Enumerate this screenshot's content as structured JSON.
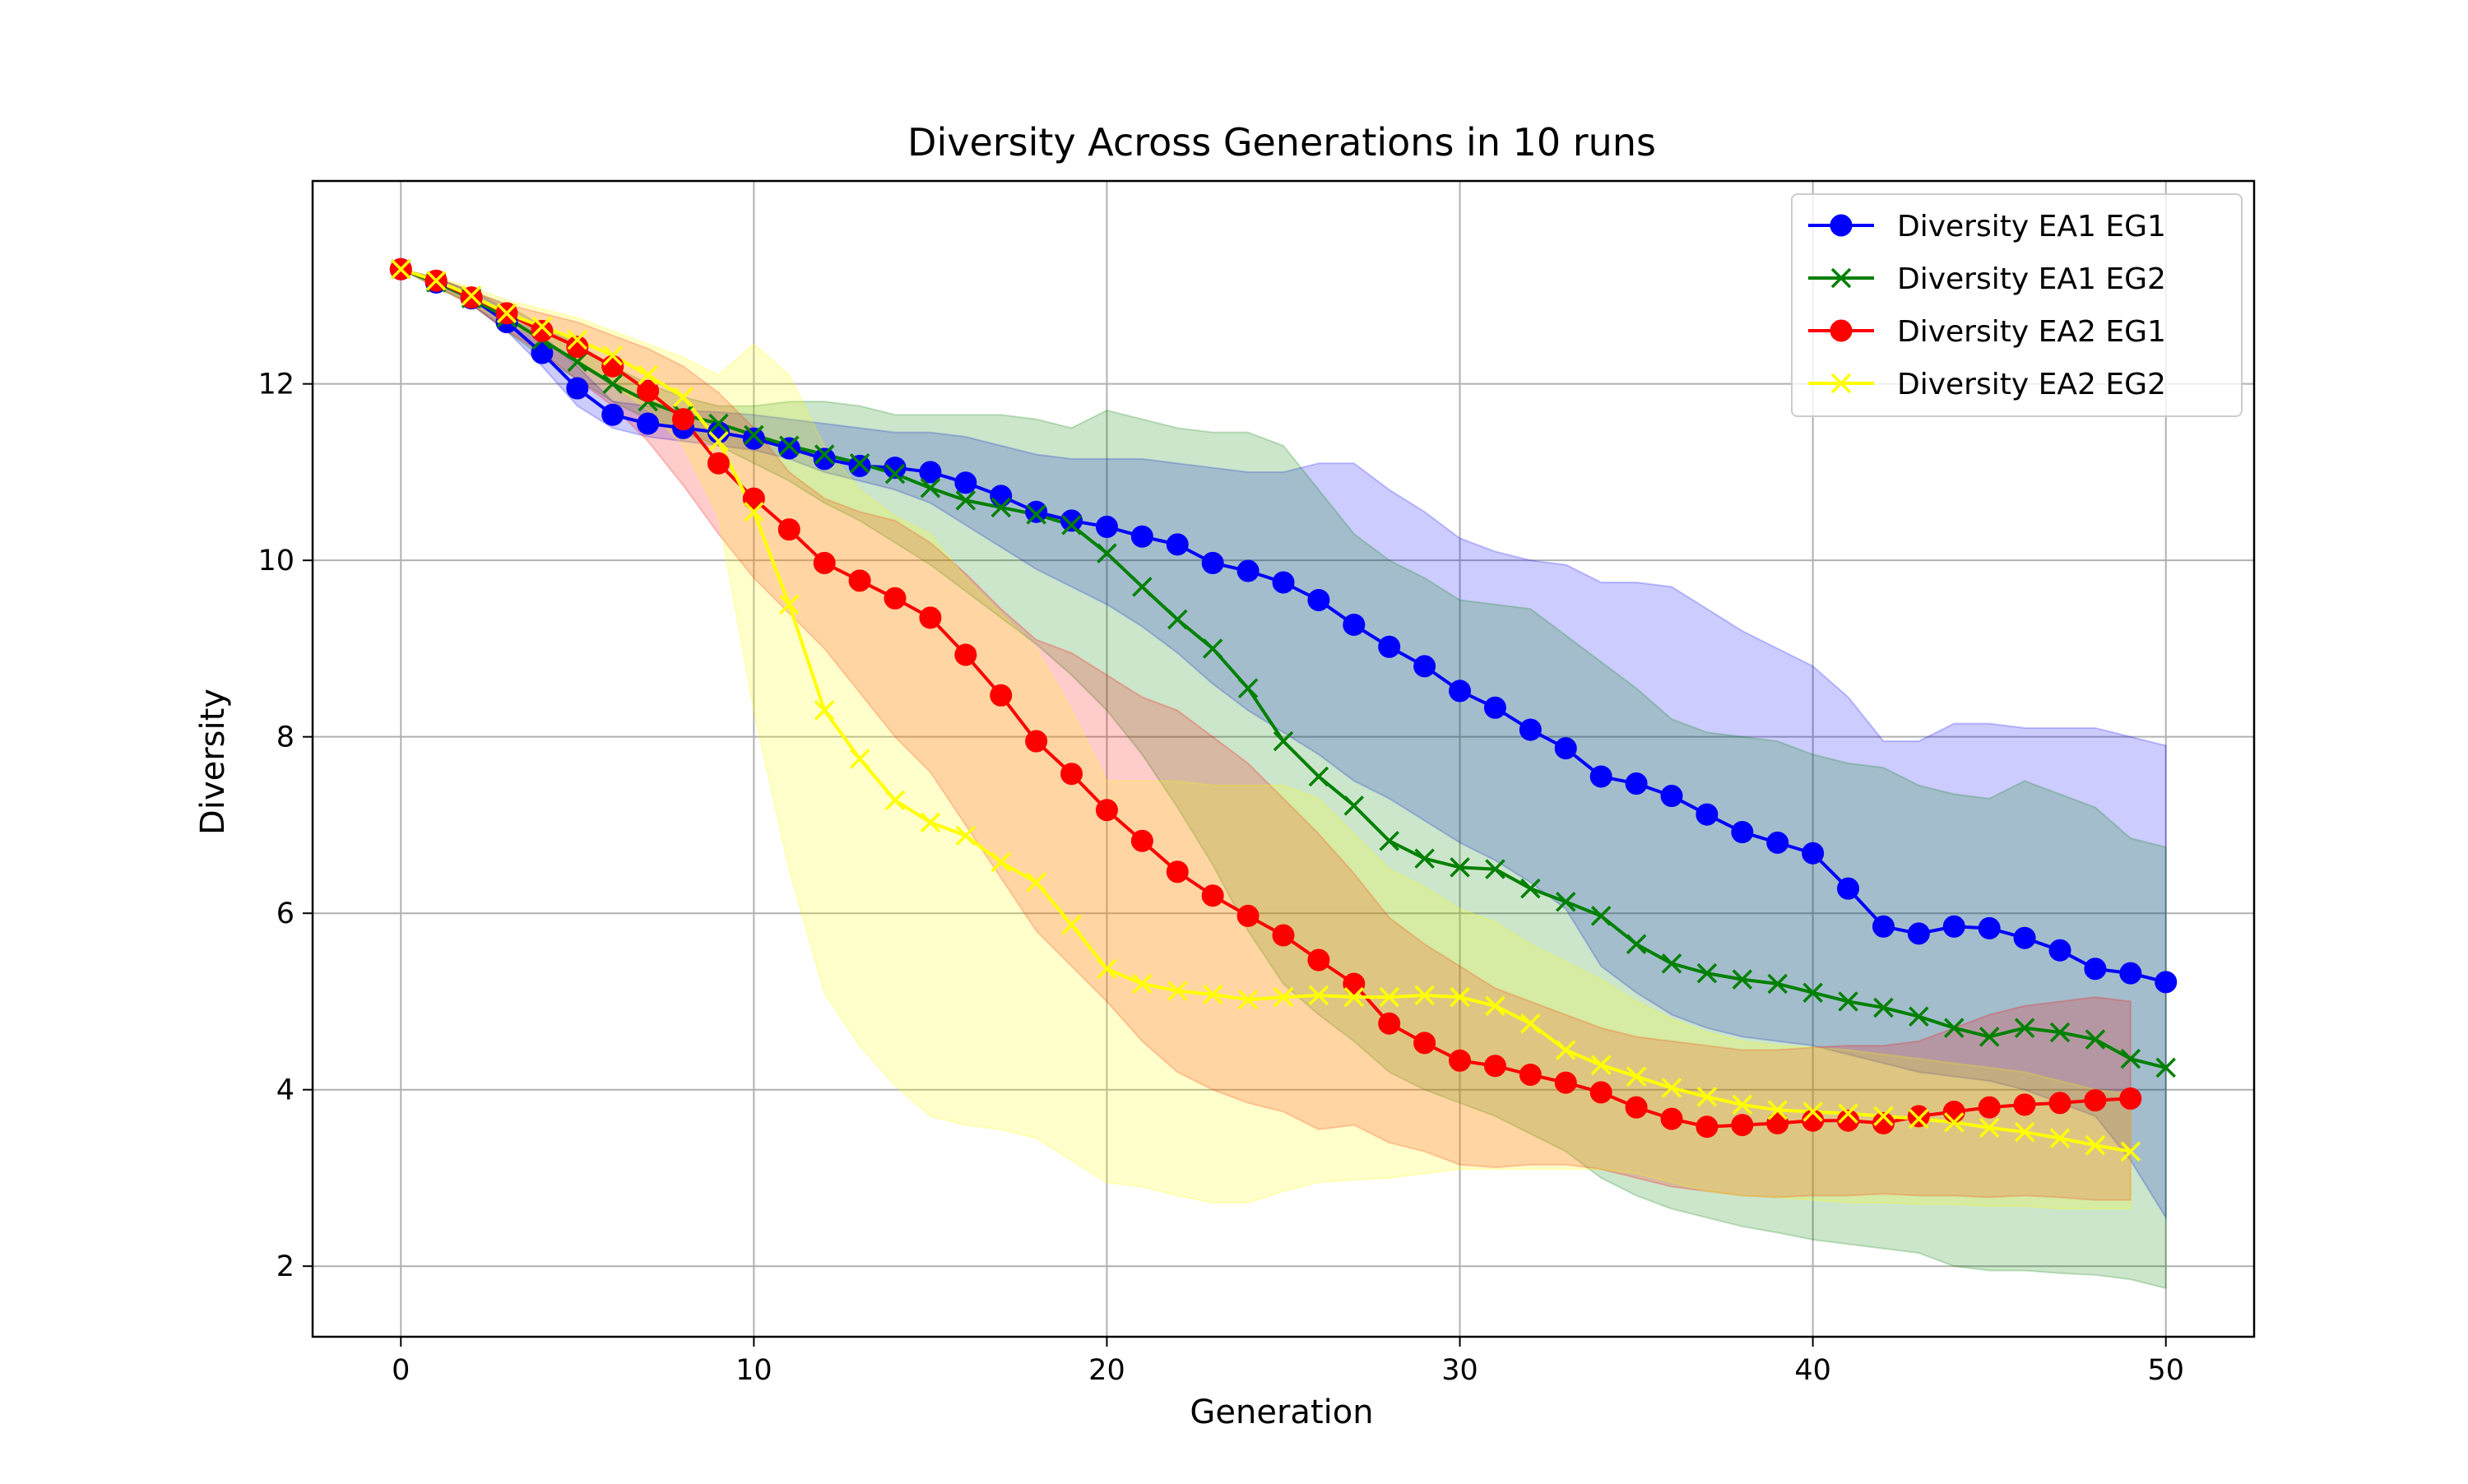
{
  "chart_data": {
    "type": "line",
    "title": "Diversity Across Generations in 10 runs",
    "xlabel": "Generation",
    "ylabel": "Diversity",
    "xlim": [
      -2.5,
      52.5
    ],
    "ylim": [
      1.2,
      14.3
    ],
    "xticks": [
      0,
      10,
      20,
      30,
      40,
      50
    ],
    "yticks": [
      2,
      4,
      6,
      8,
      10,
      12
    ],
    "grid": true,
    "legend_position": "top-right",
    "series": [
      {
        "name": "Diversity EA1 EG1",
        "color": "#0000ff",
        "marker": "circle",
        "x": [
          0,
          1,
          2,
          3,
          4,
          5,
          6,
          7,
          8,
          9,
          10,
          11,
          12,
          13,
          14,
          15,
          16,
          17,
          18,
          19,
          20,
          21,
          22,
          23,
          24,
          25,
          26,
          27,
          28,
          29,
          30,
          31,
          32,
          33,
          34,
          35,
          36,
          37,
          38,
          39,
          40,
          41,
          42,
          43,
          44,
          45,
          46,
          47,
          48,
          49,
          50
        ],
        "values": [
          13.3,
          13.15,
          12.97,
          12.7,
          12.35,
          11.95,
          11.65,
          11.55,
          11.5,
          11.45,
          11.38,
          11.27,
          11.15,
          11.07,
          11.05,
          11.0,
          10.88,
          10.73,
          10.55,
          10.45,
          10.38,
          10.27,
          10.18,
          9.97,
          9.88,
          9.75,
          9.55,
          9.27,
          9.02,
          8.8,
          8.52,
          8.33,
          8.08,
          7.87,
          7.55,
          7.47,
          7.33,
          7.12,
          6.92,
          6.8,
          6.68,
          6.28,
          5.85,
          5.77,
          5.85,
          5.83,
          5.72,
          5.58,
          5.37,
          5.32,
          5.22
        ],
        "upper": [
          13.3,
          13.2,
          13.05,
          12.85,
          12.55,
          12.2,
          11.8,
          11.75,
          11.7,
          11.68,
          11.65,
          11.6,
          11.55,
          11.5,
          11.45,
          11.45,
          11.4,
          11.3,
          11.2,
          11.15,
          11.15,
          11.15,
          11.1,
          11.05,
          11.0,
          11.0,
          11.1,
          11.1,
          10.8,
          10.55,
          10.25,
          10.1,
          10.0,
          9.95,
          9.75,
          9.75,
          9.7,
          9.45,
          9.2,
          9.0,
          8.8,
          8.45,
          7.95,
          7.95,
          8.15,
          8.15,
          8.1,
          8.1,
          8.1,
          8.0,
          7.9
        ],
        "lower": [
          13.3,
          13.1,
          12.9,
          12.6,
          12.2,
          11.75,
          11.5,
          11.4,
          11.35,
          11.3,
          11.25,
          11.15,
          11.0,
          10.9,
          10.8,
          10.65,
          10.4,
          10.15,
          9.9,
          9.7,
          9.5,
          9.25,
          8.95,
          8.6,
          8.3,
          8.05,
          7.8,
          7.5,
          7.3,
          7.05,
          6.8,
          6.6,
          6.35,
          6.05,
          5.4,
          5.1,
          4.85,
          4.7,
          4.6,
          4.55,
          4.5,
          4.4,
          4.3,
          4.2,
          4.15,
          4.1,
          4.0,
          3.85,
          3.7,
          3.2,
          2.55
        ]
      },
      {
        "name": "Diversity EA1 EG2",
        "color": "#008000",
        "marker": "x",
        "x": [
          0,
          1,
          2,
          3,
          4,
          5,
          6,
          7,
          8,
          9,
          10,
          11,
          12,
          13,
          14,
          15,
          16,
          17,
          18,
          19,
          20,
          21,
          22,
          23,
          24,
          25,
          26,
          27,
          28,
          29,
          30,
          31,
          32,
          33,
          34,
          35,
          36,
          37,
          38,
          39,
          40,
          41,
          42,
          43,
          44,
          45,
          46,
          47,
          48,
          49,
          50
        ],
        "values": [
          13.3,
          13.15,
          12.97,
          12.75,
          12.5,
          12.25,
          12.0,
          11.8,
          11.65,
          11.55,
          11.42,
          11.3,
          11.2,
          11.1,
          10.98,
          10.82,
          10.68,
          10.6,
          10.52,
          10.4,
          10.08,
          9.7,
          9.33,
          9.0,
          8.55,
          7.95,
          7.55,
          7.22,
          6.82,
          6.62,
          6.52,
          6.5,
          6.28,
          6.13,
          5.97,
          5.65,
          5.43,
          5.32,
          5.25,
          5.2,
          5.1,
          5.0,
          4.93,
          4.83,
          4.7,
          4.6,
          4.7,
          4.65,
          4.57,
          4.35,
          4.25
        ],
        "upper": [
          13.3,
          13.2,
          13.05,
          12.9,
          12.65,
          12.45,
          12.2,
          12.0,
          11.85,
          11.75,
          11.75,
          11.8,
          11.8,
          11.75,
          11.65,
          11.65,
          11.65,
          11.65,
          11.6,
          11.5,
          11.7,
          11.6,
          11.5,
          11.45,
          11.45,
          11.3,
          10.8,
          10.3,
          10.0,
          9.8,
          9.55,
          9.5,
          9.45,
          9.15,
          8.85,
          8.55,
          8.2,
          8.05,
          8.0,
          7.95,
          7.8,
          7.7,
          7.65,
          7.45,
          7.35,
          7.3,
          7.5,
          7.35,
          7.2,
          6.85,
          6.75
        ],
        "lower": [
          13.3,
          13.1,
          12.9,
          12.6,
          12.3,
          12.05,
          11.8,
          11.6,
          11.45,
          11.3,
          11.1,
          10.9,
          10.65,
          10.45,
          10.2,
          9.95,
          9.65,
          9.35,
          9.05,
          8.7,
          8.3,
          7.8,
          7.2,
          6.55,
          5.8,
          5.2,
          4.85,
          4.55,
          4.2,
          4.0,
          3.85,
          3.7,
          3.5,
          3.3,
          3.0,
          2.8,
          2.65,
          2.55,
          2.45,
          2.38,
          2.3,
          2.25,
          2.2,
          2.15,
          2.0,
          1.95,
          1.95,
          1.92,
          1.9,
          1.85,
          1.75
        ]
      },
      {
        "name": "Diversity EA2 EG1",
        "color": "#ff0000",
        "marker": "circle",
        "x": [
          0,
          1,
          2,
          3,
          4,
          5,
          6,
          7,
          8,
          9,
          10,
          11,
          12,
          13,
          14,
          15,
          16,
          17,
          18,
          19,
          20,
          21,
          22,
          23,
          24,
          25,
          26,
          27,
          28,
          29,
          30,
          31,
          32,
          33,
          34,
          35,
          36,
          37,
          38,
          39,
          40,
          41,
          42,
          43,
          44,
          45,
          46,
          47,
          48,
          49
        ],
        "values": [
          13.3,
          13.17,
          12.98,
          12.8,
          12.6,
          12.42,
          12.2,
          11.92,
          11.6,
          11.1,
          10.7,
          10.35,
          9.97,
          9.77,
          9.57,
          9.35,
          8.93,
          8.47,
          7.95,
          7.58,
          7.17,
          6.82,
          6.47,
          6.2,
          5.97,
          5.75,
          5.47,
          5.2,
          4.75,
          4.53,
          4.33,
          4.27,
          4.17,
          4.08,
          3.97,
          3.8,
          3.67,
          3.58,
          3.6,
          3.62,
          3.65,
          3.65,
          3.62,
          3.7,
          3.75,
          3.8,
          3.83,
          3.85,
          3.88,
          3.9
        ],
        "upper": [
          13.3,
          13.2,
          13.05,
          12.9,
          12.8,
          12.7,
          12.55,
          12.4,
          12.2,
          11.9,
          11.5,
          11.0,
          10.7,
          10.55,
          10.45,
          10.2,
          9.85,
          9.45,
          9.1,
          8.95,
          8.7,
          8.45,
          8.3,
          8.0,
          7.7,
          7.3,
          6.9,
          6.45,
          5.95,
          5.65,
          5.4,
          5.15,
          5.0,
          4.85,
          4.7,
          4.6,
          4.55,
          4.5,
          4.45,
          4.45,
          4.48,
          4.5,
          4.5,
          4.55,
          4.7,
          4.85,
          4.95,
          5.0,
          5.05,
          5.0
        ],
        "lower": [
          13.3,
          13.1,
          12.9,
          12.6,
          12.35,
          12.05,
          11.75,
          11.35,
          10.85,
          10.3,
          9.8,
          9.4,
          9.0,
          8.5,
          8.0,
          7.6,
          7.0,
          6.4,
          5.8,
          5.4,
          5.0,
          4.55,
          4.2,
          4.0,
          3.85,
          3.75,
          3.55,
          3.6,
          3.4,
          3.3,
          3.15,
          3.12,
          3.15,
          3.15,
          3.1,
          3.0,
          2.9,
          2.85,
          2.8,
          2.78,
          2.8,
          2.8,
          2.82,
          2.8,
          2.8,
          2.78,
          2.8,
          2.78,
          2.75,
          2.75
        ]
      },
      {
        "name": "Diversity EA2 EG2",
        "color": "#ffff00",
        "marker": "x",
        "x": [
          0,
          1,
          2,
          3,
          4,
          5,
          6,
          7,
          8,
          9,
          10,
          11,
          12,
          13,
          14,
          15,
          16,
          17,
          18,
          19,
          20,
          21,
          22,
          23,
          24,
          25,
          26,
          27,
          28,
          29,
          30,
          31,
          32,
          33,
          34,
          35,
          36,
          37,
          38,
          39,
          40,
          41,
          42,
          43,
          44,
          45,
          46,
          47,
          48,
          49
        ],
        "values": [
          13.3,
          13.17,
          13.0,
          12.8,
          12.65,
          12.5,
          12.32,
          12.1,
          11.85,
          11.35,
          10.55,
          9.5,
          8.3,
          7.75,
          7.28,
          7.03,
          6.88,
          6.58,
          6.35,
          5.87,
          5.37,
          5.2,
          5.12,
          5.08,
          5.02,
          5.05,
          5.07,
          5.05,
          5.05,
          5.07,
          5.05,
          4.95,
          4.75,
          4.45,
          4.28,
          4.15,
          4.02,
          3.92,
          3.83,
          3.77,
          3.75,
          3.73,
          3.7,
          3.67,
          3.63,
          3.57,
          3.52,
          3.45,
          3.37,
          3.3
        ],
        "upper": [
          13.3,
          13.2,
          13.1,
          12.95,
          12.85,
          12.75,
          12.6,
          12.45,
          12.3,
          12.1,
          12.45,
          12.1,
          11.3,
          10.8,
          10.5,
          10.3,
          9.8,
          9.4,
          9.0,
          8.3,
          7.5,
          7.5,
          7.5,
          7.45,
          7.45,
          7.45,
          7.3,
          6.9,
          6.5,
          6.3,
          6.05,
          5.9,
          5.65,
          5.45,
          5.25,
          5.0,
          4.8,
          4.65,
          4.55,
          4.5,
          4.48,
          4.45,
          4.4,
          4.35,
          4.3,
          4.25,
          4.2,
          4.1,
          4.0,
          3.95
        ],
        "lower": [
          13.3,
          13.1,
          12.9,
          12.7,
          12.5,
          12.25,
          12.0,
          11.7,
          11.3,
          10.5,
          8.3,
          6.5,
          5.1,
          4.5,
          4.05,
          3.7,
          3.6,
          3.55,
          3.45,
          3.2,
          2.95,
          2.9,
          2.8,
          2.72,
          2.72,
          2.85,
          2.95,
          2.98,
          3.0,
          3.05,
          3.1,
          3.1,
          3.1,
          3.1,
          3.1,
          3.05,
          2.95,
          2.85,
          2.8,
          2.78,
          2.75,
          2.72,
          2.72,
          2.7,
          2.7,
          2.68,
          2.68,
          2.65,
          2.65,
          2.65
        ]
      }
    ]
  }
}
